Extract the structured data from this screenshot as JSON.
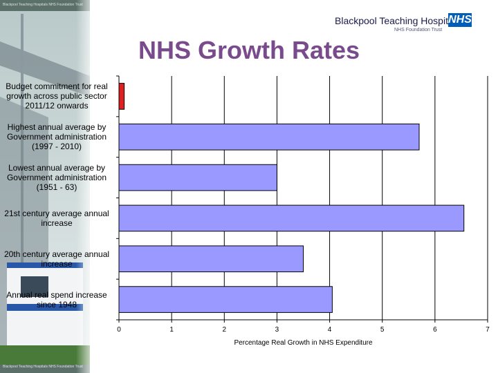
{
  "header": {
    "organisation": "Blackpool Teaching Hospitals",
    "nhs_logo": "NHS",
    "subtitle": "NHS Foundation Trust",
    "photo_strip_text": "Blackpool Teaching Hospitals NHS Foundation Trust"
  },
  "title": "NHS Growth Rates",
  "colors": {
    "title": "#7a4b8c",
    "bar": "#9999ff",
    "highlight_bar": "#e02020",
    "nhs_blue": "#005eb8"
  },
  "chart_data": {
    "type": "bar",
    "orientation": "horizontal",
    "title": "NHS Growth Rates",
    "xlabel": "Percentage Real Growth in NHS Expenditure",
    "ylabel": "",
    "xlim": [
      0,
      7
    ],
    "xticks": [
      "0",
      "1",
      "2",
      "3",
      "4",
      "5",
      "6",
      "7"
    ],
    "grid": true,
    "legend": "none",
    "categories": [
      "Budget commitment for real growth across public sector 2011/12 onwards",
      "Highest annual average by Government administration (1997 - 2010)",
      "Lowest annual average by Government administration (1951 - 63)",
      "21st century average annual increase",
      "20th century average annual increase",
      "Annual real spend increase since 1948"
    ],
    "values": [
      0.1,
      5.7,
      3.0,
      6.55,
      3.5,
      4.05
    ],
    "bar_colors": [
      "#e02020",
      "#9999ff",
      "#9999ff",
      "#9999ff",
      "#9999ff",
      "#9999ff"
    ]
  }
}
